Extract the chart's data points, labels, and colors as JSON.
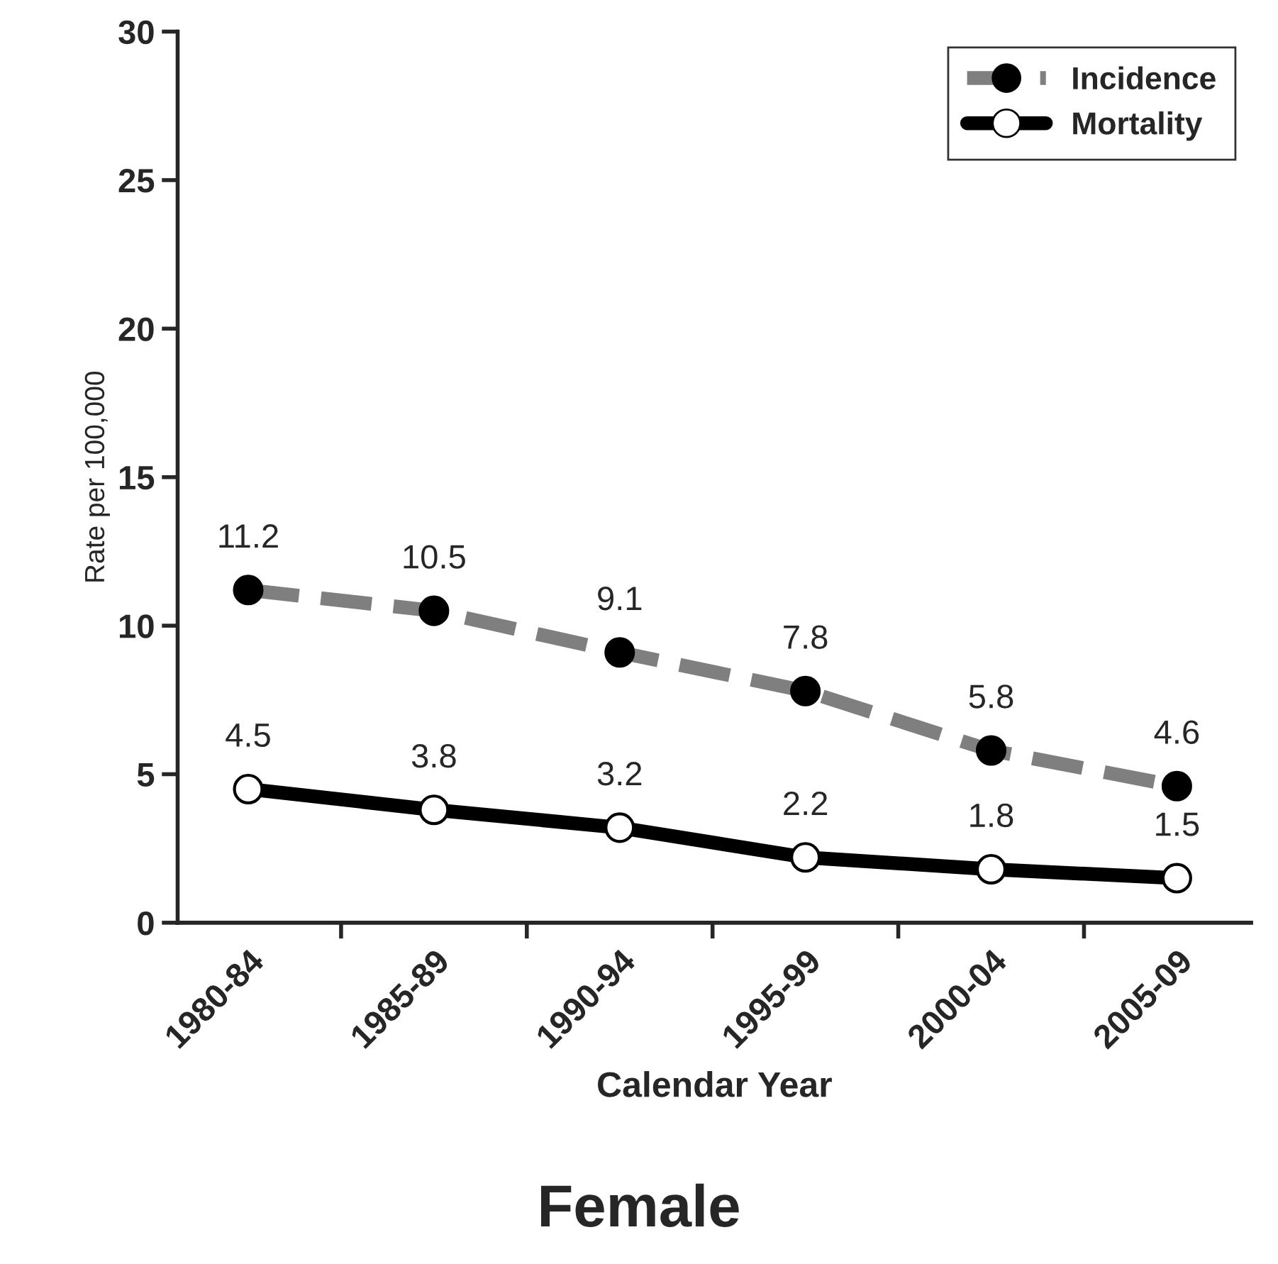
{
  "chart_data": {
    "type": "line",
    "title": "Female",
    "xlabel": "Calendar Year",
    "ylabel": "Rate per 100,000",
    "categories": [
      "1980-84",
      "1985-89",
      "1990-94",
      "1995-99",
      "2000-04",
      "2005-09"
    ],
    "series": [
      {
        "name": "Incidence",
        "color": "#7f7f7f",
        "values": [
          11.2,
          10.5,
          9.1,
          7.8,
          5.8,
          4.6
        ],
        "line_style": "dashed",
        "colors": [
          "#000000",
          "#000000",
          "#000000",
          "#000000",
          "#000000",
          "#000000"
        ]
      },
      {
        "name": "Mortality",
        "color": "#000000",
        "values": [
          4.5,
          3.8,
          3.2,
          2.2,
          1.8,
          1.5
        ],
        "line_style": "solid",
        "colors": [
          "#ffffff",
          "#ffffff",
          "#ffffff",
          "#ffffff",
          "#ffffff",
          "#ffffff"
        ]
      }
    ],
    "ylim": [
      0,
      30
    ],
    "yticks": [
      0,
      5,
      10,
      15,
      20,
      25,
      30
    ],
    "data_labels": true,
    "legend": "top right",
    "grid": false,
    "marker": "circle"
  }
}
